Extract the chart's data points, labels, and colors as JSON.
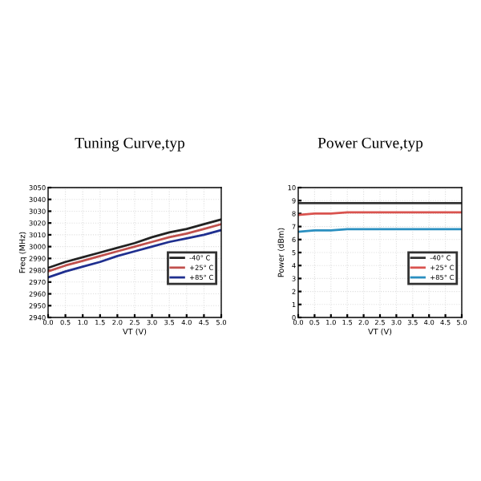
{
  "chart_data": [
    {
      "type": "line",
      "title": "Tuning Curve,typ",
      "xlabel": "VT (V)",
      "ylabel": "Freq (MHz)",
      "x": [
        0,
        0.5,
        1,
        1.5,
        2,
        2.5,
        3,
        3.5,
        4,
        4.5,
        5
      ],
      "series": [
        {
          "name": "-40° C",
          "color": "#222222",
          "values": [
            2982,
            2987,
            2991,
            2995,
            2999,
            3003,
            3008,
            3012,
            3015,
            3019,
            3023
          ]
        },
        {
          "name": "+25° C",
          "color": "#c0504d",
          "values": [
            2979,
            2984,
            2988,
            2992,
            2996,
            3000,
            3004,
            3008,
            3011,
            3015,
            3019
          ]
        },
        {
          "name": "+85° C",
          "color": "#1f2f8f",
          "values": [
            2974,
            2979,
            2983,
            2987,
            2992,
            2996,
            3000,
            3004,
            3007,
            3010,
            3014
          ]
        }
      ],
      "xlim": [
        0,
        5
      ],
      "xticks": [
        {
          "value": 0,
          "label": "0.0"
        },
        {
          "value": 0.5,
          "label": "0.5"
        },
        {
          "value": 1,
          "label": "1.0"
        },
        {
          "value": 1.5,
          "label": "1.5"
        },
        {
          "value": 2,
          "label": "2.0"
        },
        {
          "value": 2.5,
          "label": "2.5"
        },
        {
          "value": 3,
          "label": "3.0"
        },
        {
          "value": 3.5,
          "label": "3.5"
        },
        {
          "value": 4,
          "label": "4.0"
        },
        {
          "value": 4.5,
          "label": "4.5"
        },
        {
          "value": 5,
          "label": "5.0"
        }
      ],
      "ylim": [
        2940,
        3050
      ],
      "yticks": [
        2940,
        2950,
        2960,
        2970,
        2980,
        2990,
        3000,
        3010,
        3020,
        3030,
        3040,
        3050
      ],
      "grid": true,
      "legend": "right",
      "marker": "none",
      "line_style": "solid"
    },
    {
      "type": "line",
      "title": "Power Curve,typ",
      "xlabel": "VT (V)",
      "ylabel": "Power (dBm)",
      "x": [
        0,
        0.5,
        1,
        1.5,
        2,
        2.5,
        3,
        3.5,
        4,
        4.5,
        5
      ],
      "series": [
        {
          "name": "-40° C",
          "color": "#333333",
          "values": [
            8.8,
            8.8,
            8.8,
            8.8,
            8.8,
            8.8,
            8.8,
            8.8,
            8.8,
            8.8,
            8.8
          ]
        },
        {
          "name": "+25° C",
          "color": "#d9534f",
          "values": [
            7.9,
            8.0,
            8.0,
            8.1,
            8.1,
            8.1,
            8.1,
            8.1,
            8.1,
            8.1,
            8.1
          ]
        },
        {
          "name": "+85° C",
          "color": "#2a8fc0",
          "values": [
            6.6,
            6.7,
            6.7,
            6.8,
            6.8,
            6.8,
            6.8,
            6.8,
            6.8,
            6.8,
            6.8
          ]
        }
      ],
      "xlim": [
        0,
        5
      ],
      "xticks": [
        {
          "value": 0,
          "label": "0.0"
        },
        {
          "value": 0.5,
          "label": "0.5"
        },
        {
          "value": 1,
          "label": "1.0"
        },
        {
          "value": 1.5,
          "label": "1.5"
        },
        {
          "value": 2,
          "label": "2.0"
        },
        {
          "value": 2.5,
          "label": "2.5"
        },
        {
          "value": 3,
          "label": "3.0"
        },
        {
          "value": 3.5,
          "label": "3.5"
        },
        {
          "value": 4,
          "label": "4.0"
        },
        {
          "value": 4.5,
          "label": "4.5"
        },
        {
          "value": 5,
          "label": "5.0"
        }
      ],
      "ylim": [
        0,
        10
      ],
      "yticks": [
        0,
        1,
        2,
        3,
        4,
        5,
        6,
        7,
        8,
        9,
        10
      ],
      "grid": true,
      "legend": "right",
      "marker": "none",
      "line_style": "solid"
    }
  ]
}
